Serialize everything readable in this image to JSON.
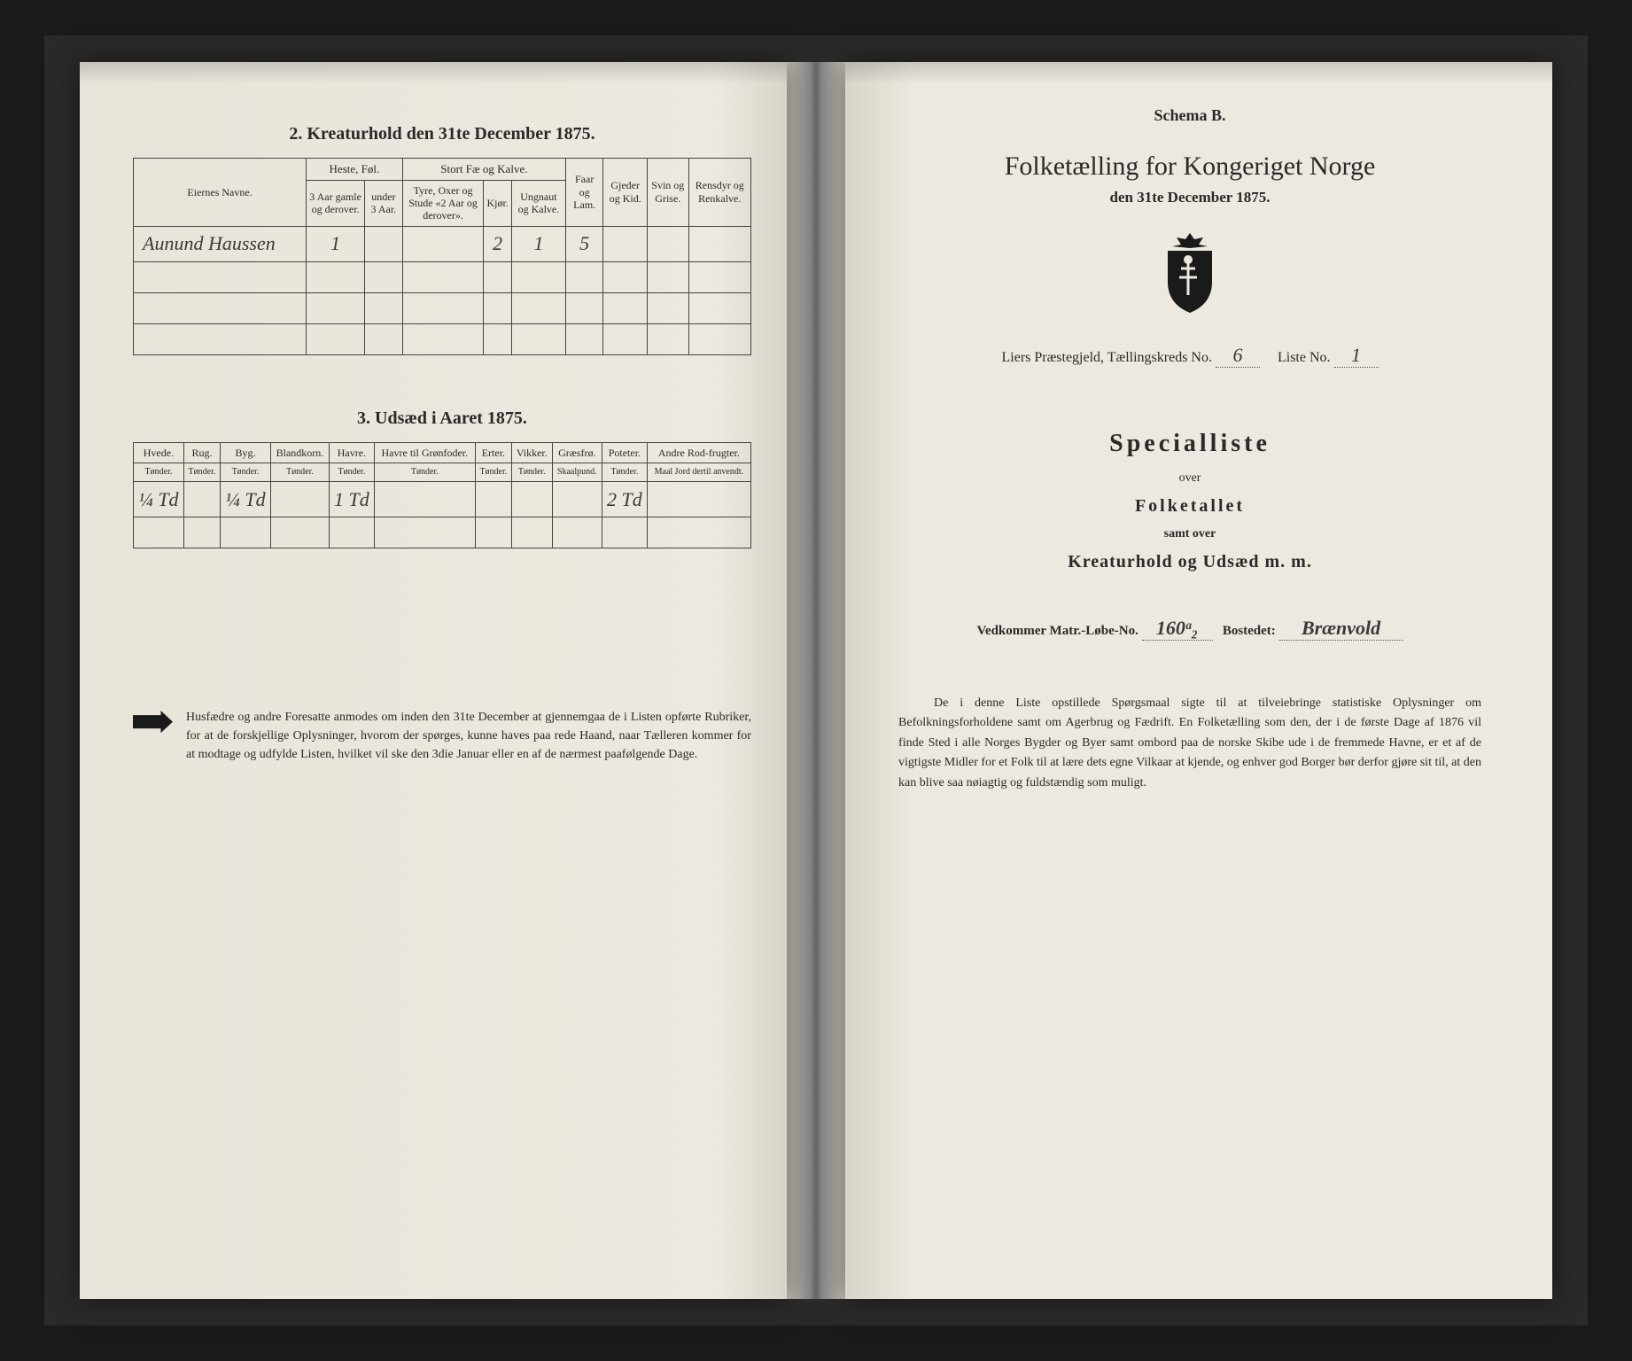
{
  "left": {
    "section2_title": "2. Kreaturhold den 31te December 1875.",
    "table2": {
      "col_eier": "Eiernes Navne.",
      "grp_heste": "Heste, Føl.",
      "grp_stort": "Stort Fæ og Kalve.",
      "col_faar": "Faar og Lam.",
      "col_gjeder": "Gjeder og Kid.",
      "col_svin": "Svin og Grise.",
      "col_rensdyr": "Rensdyr og Renkalve.",
      "sub_heste1": "3 Aar gamle og derover.",
      "sub_heste2": "under 3 Aar.",
      "sub_stort1": "Tyre, Oxer og Stude «2 Aar og derover».",
      "sub_stort2": "Kjør.",
      "sub_stort3": "Ungnaut og Kalve.",
      "row1": {
        "name": "Aunund Haussen",
        "v1": "1",
        "v2": "",
        "v3": "",
        "v4": "2",
        "v5": "1",
        "v6": "5",
        "v7": "",
        "v8": "",
        "v9": ""
      }
    },
    "section3_title": "3. Udsæd i Aaret 1875.",
    "table3": {
      "cols": [
        "Hvede.",
        "Rug.",
        "Byg.",
        "Blandkorn.",
        "Havre.",
        "Havre til Grønfoder.",
        "Erter.",
        "Vikker.",
        "Græsfrø.",
        "Poteter.",
        "Andre Rod-frugter."
      ],
      "units": [
        "Tønder.",
        "Tønder.",
        "Tønder.",
        "Tønder.",
        "Tønder.",
        "Tønder.",
        "Tønder.",
        "Tønder.",
        "Skaalpund.",
        "Tønder.",
        "Maal Jord dertil anvendt."
      ],
      "row1": [
        "¼ Td",
        "",
        "¼ Td",
        "",
        "1 Td",
        "",
        "",
        "",
        "",
        "2 Td",
        ""
      ]
    },
    "footnote": "Husfædre og andre Foresatte anmodes om inden den 31te December at gjennemgaa de i Listen opførte Rubriker, for at de forskjellige Oplysninger, hvorom der spørges, kunne haves paa rede Haand, naar Tælleren kommer for at modtage og udfylde Listen, hvilket vil ske den 3die Januar eller en af de nærmest paafølgende Dage."
  },
  "right": {
    "schema": "Schema B.",
    "main_title": "Folketælling for Kongeriget Norge",
    "sub_date": "den 31te December 1875.",
    "parish_line_pre": "Liers Præstegjeld, Tællingskreds No.",
    "kreds_no": "6",
    "liste_label": "Liste No.",
    "liste_no": "1",
    "special": "Specialliste",
    "over": "over",
    "folketallet": "Folketallet",
    "samt": "samt over",
    "kreatur": "Kreaturhold og Udsæd m. m.",
    "vedkommer_pre": "Vedkommer Matr.-Løbe-No.",
    "matr_no": "160ᵃ₂",
    "bostedet_label": "Bostedet:",
    "bostedet": "Brænvold",
    "bottom": "De i denne Liste opstillede Spørgsmaal sigte til at tilveiebringe statistiske Oplysninger om Befolkningsforholdene samt om Agerbrug og Fædrift. En Folketælling som den, der i de første Dage af 1876 vil finde Sted i alle Norges Bygder og Byer samt ombord paa de norske Skibe ude i de fremmede Havne, er et af de vigtigste Midler for et Folk til at lære dets egne Vilkaar at kjende, og enhver god Borger bør derfor gjøre sit til, at den kan blive saa nøiagtig og fuldstændig som muligt."
  }
}
